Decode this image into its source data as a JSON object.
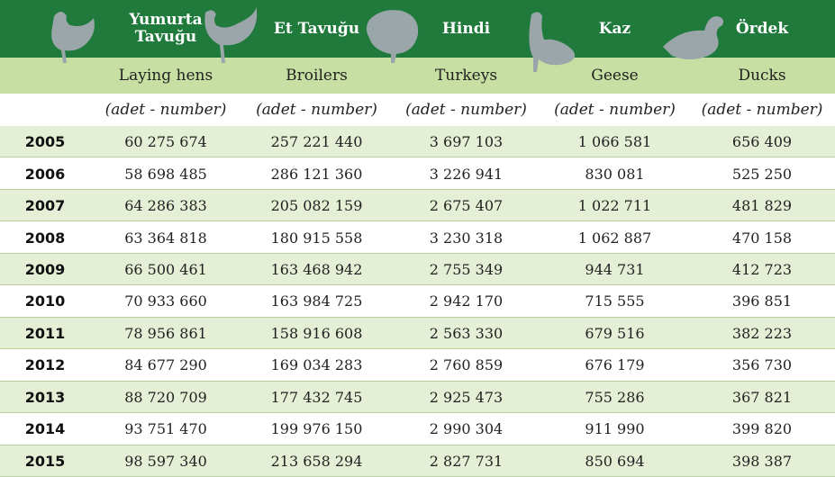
{
  "table": {
    "columns": [
      {
        "title": "Yumurta Tavuğu",
        "subtitle": "Laying hens",
        "unit": "(adet - number)"
      },
      {
        "title": "Et Tavuğu",
        "subtitle": "Broilers",
        "unit": "(adet - number)"
      },
      {
        "title": "Hindi",
        "subtitle": "Turkeys",
        "unit": "(adet - number)"
      },
      {
        "title": "Kaz",
        "subtitle": "Geese",
        "unit": "(adet - number)"
      },
      {
        "title": "Ördek",
        "subtitle": "Ducks",
        "unit": "(adet - number)"
      }
    ],
    "rows": [
      [
        "2005",
        "60 275 674",
        "257 221 440",
        "3 697 103",
        "1 066 581",
        "656 409"
      ],
      [
        "2006",
        "58 698 485",
        "286 121 360",
        "3 226 941",
        "830 081",
        "525 250"
      ],
      [
        "2007",
        "64 286 383",
        "205 082 159",
        "2 675 407",
        "1 022 711",
        "481 829"
      ],
      [
        "2008",
        "63 364 818",
        "180 915 558",
        "3 230 318",
        "1 062 887",
        "470 158"
      ],
      [
        "2009",
        "66 500 461",
        "163 468 942",
        "2 755 349",
        "944 731",
        "412 723"
      ],
      [
        "2010",
        "70 933 660",
        "163 984 725",
        "2 942 170",
        "715 555",
        "396 851"
      ],
      [
        "2011",
        "78 956 861",
        "158 916 608",
        "2 563 330",
        "679 516",
        "382 223"
      ],
      [
        "2012",
        "84 677 290",
        "169 034 283",
        "2 760 859",
        "676 179",
        "356 730"
      ],
      [
        "2013",
        "88 720 709",
        "177 432 745",
        "2 925 473",
        "755 286",
        "367 821"
      ],
      [
        "2014",
        "93 751 470",
        "199 976 150",
        "2 990 304",
        "911 990",
        "399 820"
      ],
      [
        "2015",
        "98 597 340",
        "213 658 294",
        "2 827 731",
        "850 694",
        "398 387"
      ]
    ]
  }
}
